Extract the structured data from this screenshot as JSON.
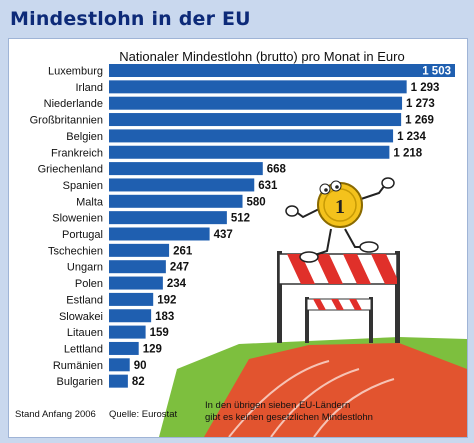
{
  "title": "Mindestlohn in der EU",
  "chart_data": {
    "type": "bar",
    "orientation": "horizontal",
    "subtitle": "Nationaler Mindestlohn (brutto) pro Monat in Euro",
    "categories": [
      "Luxemburg",
      "Irland",
      "Niederlande",
      "Großbritannien",
      "Belgien",
      "Frankreich",
      "Griechenland",
      "Spanien",
      "Malta",
      "Slowenien",
      "Portugal",
      "Tschechien",
      "Ungarn",
      "Polen",
      "Estland",
      "Slowakei",
      "Litauen",
      "Lettland",
      "Rumänien",
      "Bulgarien"
    ],
    "values": [
      1503,
      1293,
      1273,
      1269,
      1234,
      1218,
      668,
      631,
      580,
      512,
      437,
      261,
      247,
      234,
      192,
      183,
      159,
      129,
      90,
      82
    ],
    "value_labels": [
      "1 503",
      "1 293",
      "1 273",
      "1 269",
      "1 234",
      "1 218",
      "668",
      "631",
      "580",
      "512",
      "437",
      "261",
      "247",
      "234",
      "192",
      "183",
      "159",
      "129",
      "90",
      "82"
    ],
    "xlim": [
      0,
      1503
    ],
    "bar_color": "#1f5fb0",
    "grid": false
  },
  "footer": {
    "source_date": "Stand Anfang 2006",
    "source": "Quelle: Eurostat",
    "note_line1": "In den übrigen sieben EU-Ländern",
    "note_line2": "gibt es keinen gesetzlichen Mindestlohn"
  },
  "illustration": {
    "coin_label": "1"
  }
}
